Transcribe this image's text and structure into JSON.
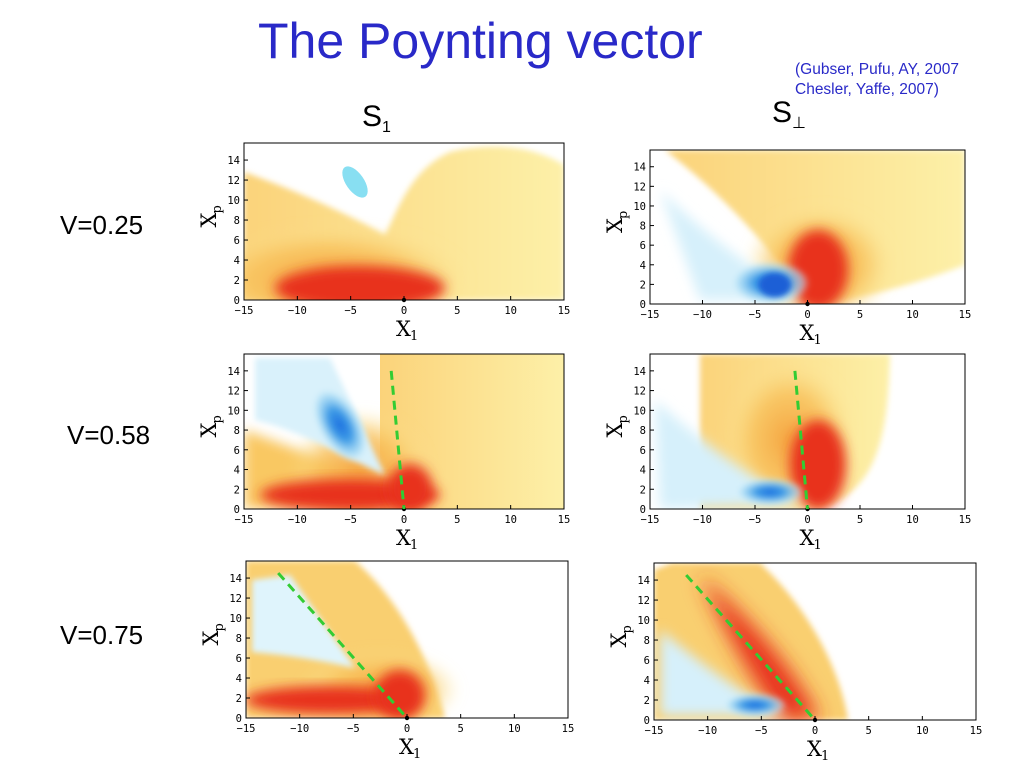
{
  "title": "The Poynting vector",
  "references": [
    "(Gubser, Pufu, AY, 2007",
    "Chesler, Yaffe, 2007)"
  ],
  "columns": [
    {
      "symbol": "S",
      "subscript": "1"
    },
    {
      "symbol": "S",
      "subscript": "⊥"
    }
  ],
  "rows": [
    {
      "label": "V=0.25"
    },
    {
      "label": "V=0.58"
    },
    {
      "label": "V=0.75"
    }
  ],
  "axes": {
    "xlabel": "X",
    "xlabel_sub": "1",
    "ylabel": "X",
    "ylabel_sub": "p",
    "x_ticks": [
      "−15",
      "−10",
      "−5",
      "0",
      "5",
      "10",
      "15"
    ],
    "y_ticks": [
      "0",
      "2",
      "4",
      "6",
      "8",
      "10",
      "12",
      "14"
    ]
  },
  "colors": {
    "title": "#2929c8",
    "positive": "#e8321c",
    "mid": "#f6b24a",
    "light": "#fbe89a",
    "negative": "#1e78d8",
    "neg_light": "#bfe6f7",
    "dash": "#33cc33"
  },
  "chart_data": [
    {
      "type": "heatmap",
      "panel": "S1, V=0.25",
      "xlim": [
        -15,
        15
      ],
      "ylim": [
        0,
        15
      ],
      "wake_line": false
    },
    {
      "type": "heatmap",
      "panel": "S⊥, V=0.25",
      "xlim": [
        -15,
        15
      ],
      "ylim": [
        0,
        15
      ],
      "wake_line": false
    },
    {
      "type": "heatmap",
      "panel": "S1, V=0.58",
      "xlim": [
        -15,
        15
      ],
      "ylim": [
        0,
        15
      ],
      "wake_line": true,
      "wake_line_points": [
        [
          -1.2,
          14
        ],
        [
          0,
          0
        ]
      ]
    },
    {
      "type": "heatmap",
      "panel": "S⊥, V=0.58",
      "xlim": [
        -15,
        15
      ],
      "ylim": [
        0,
        15
      ],
      "wake_line": true,
      "wake_line_points": [
        [
          -1.2,
          14
        ],
        [
          0,
          0
        ]
      ]
    },
    {
      "type": "heatmap",
      "panel": "S1, V=0.75",
      "xlim": [
        -15,
        15
      ],
      "ylim": [
        0,
        15
      ],
      "wake_line": true,
      "wake_line_points": [
        [
          -12,
          14.5
        ],
        [
          0,
          0
        ]
      ]
    },
    {
      "type": "heatmap",
      "panel": "S⊥, V=0.75",
      "xlim": [
        -15,
        15
      ],
      "ylim": [
        0,
        15
      ],
      "wake_line": true,
      "wake_line_points": [
        [
          -12,
          14.5
        ],
        [
          0,
          0
        ]
      ]
    }
  ]
}
